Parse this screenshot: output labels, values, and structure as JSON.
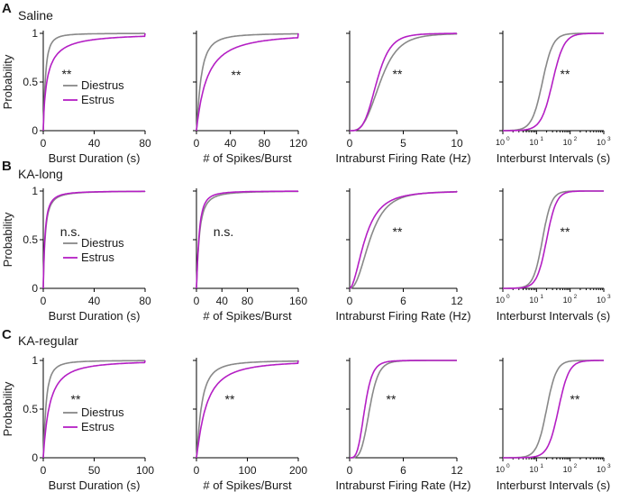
{
  "colors": {
    "diestrus": "#888888",
    "estrus": "#b41fc4"
  },
  "ylabel": "Probability",
  "yticks": [
    "0",
    "0.5",
    "1"
  ],
  "rows": [
    {
      "letter": "A",
      "title": "Saline",
      "legend": [
        "Diestrus",
        "Estrus"
      ],
      "cols": [
        {
          "xlabel": "Burst Duration (s)",
          "xticks": [
            "0",
            "40",
            "80"
          ],
          "xmax": 80,
          "log": false,
          "annot": "**",
          "legend": true,
          "diestrus_median": 2.5,
          "estrus_median": 6,
          "diestrus_shape": 1.2,
          "estrus_shape": 0.8
        },
        {
          "xlabel": "# of Spikes/Burst",
          "xticks": [
            "0",
            "40",
            "80",
            "120"
          ],
          "xmax": 120,
          "log": false,
          "annot": "**",
          "legend": false,
          "diestrus_median": 8,
          "estrus_median": 20,
          "diestrus_shape": 1.2,
          "estrus_shape": 1.0
        },
        {
          "xlabel": "Intraburst Firing Rate (Hz)",
          "xticks": [
            "0",
            "5",
            "10"
          ],
          "xmax": 10,
          "log": false,
          "annot": "**",
          "legend": false,
          "diestrus_median": 3.5,
          "estrus_median": 3.0,
          "diestrus_shape": 3.0,
          "estrus_shape": 3.5
        },
        {
          "xlabel": "Interburst Intervals (s)",
          "xticks": [
            "10",
            "10",
            "10",
            "10"
          ],
          "xticks_exp": [
            "0",
            "1",
            "2",
            "3"
          ],
          "xmax": 3,
          "log": true,
          "annot": "**",
          "legend": false,
          "diestrus_median": 15,
          "estrus_median": 30,
          "diestrus_shape": 1.2,
          "estrus_shape": 1.1
        }
      ]
    },
    {
      "letter": "B",
      "title": "KA-long",
      "legend": [
        "Diestrus",
        "Estrus"
      ],
      "cols": [
        {
          "xlabel": "Burst Duration (s)",
          "xticks": [
            "0",
            "40",
            "80"
          ],
          "xmax": 80,
          "log": false,
          "annot": "n.s.",
          "legend": true,
          "diestrus_median": 2.5,
          "estrus_median": 2.2,
          "diestrus_shape": 1.0,
          "estrus_shape": 1.0
        },
        {
          "xlabel": "# of Spikes/Burst",
          "xticks": [
            "0",
            "40",
            "80",
            "160"
          ],
          "xmax": 160,
          "log": false,
          "annot": "n.s.",
          "legend": false,
          "diestrus_median": 7,
          "estrus_median": 6,
          "diestrus_shape": 1.1,
          "estrus_shape": 1.2
        },
        {
          "xlabel": "Intraburst Firing Rate (Hz)",
          "xticks": [
            "0",
            "6",
            "12"
          ],
          "xmax": 12,
          "log": false,
          "annot": "**",
          "legend": false,
          "diestrus_median": 3.0,
          "estrus_median": 2.4,
          "diestrus_shape": 2.2,
          "estrus_shape": 1.8
        },
        {
          "xlabel": "Interburst Intervals (s)",
          "xticks": [
            "10",
            "10",
            "10",
            "10"
          ],
          "xticks_exp": [
            "0",
            "1",
            "2",
            "3"
          ],
          "xmax": 3,
          "log": true,
          "annot": "**",
          "legend": false,
          "diestrus_median": 15,
          "estrus_median": 20,
          "diestrus_shape": 1.4,
          "estrus_shape": 1.3
        }
      ]
    },
    {
      "letter": "C",
      "title": "KA-regular",
      "legend": [
        "Diestrus",
        "Estrus"
      ],
      "cols": [
        {
          "xlabel": "Burst Duration (s)",
          "xticks": [
            "0",
            "50",
            "100"
          ],
          "xmax": 100,
          "log": false,
          "annot": "**",
          "legend": true,
          "diestrus_median": 4,
          "estrus_median": 10,
          "diestrus_shape": 1.2,
          "estrus_shape": 1.0
        },
        {
          "xlabel": "# of Spikes/Burst",
          "xticks": [
            "0",
            "100",
            "200"
          ],
          "xmax": 200,
          "log": false,
          "annot": "**",
          "legend": false,
          "diestrus_median": 15,
          "estrus_median": 30,
          "diestrus_shape": 1.2,
          "estrus_shape": 1.1
        },
        {
          "xlabel": "Intraburst Firing Rate (Hz)",
          "xticks": [
            "0",
            "6",
            "12"
          ],
          "xmax": 12,
          "log": false,
          "annot": "**",
          "legend": false,
          "diestrus_median": 2.6,
          "estrus_median": 2.0,
          "diestrus_shape": 4.0,
          "estrus_shape": 3.5
        },
        {
          "xlabel": "Interburst Intervals (s)",
          "xticks": [
            "10",
            "10",
            "10",
            "10"
          ],
          "xticks_exp": [
            "0",
            "1",
            "2",
            "3"
          ],
          "xmax": 3,
          "log": true,
          "annot": "**",
          "legend": false,
          "diestrus_median": 20,
          "estrus_median": 45,
          "diestrus_shape": 1.3,
          "estrus_shape": 1.2
        }
      ]
    }
  ],
  "chart_data": {
    "type": "line",
    "title": "",
    "description_series": [
      "Diestrus",
      "Estrus"
    ],
    "ylim": [
      0,
      1
    ],
    "legend_placement": "inside-left of first column"
  }
}
